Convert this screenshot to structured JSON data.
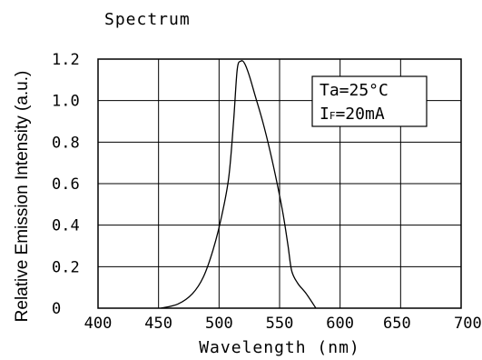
{
  "chart_data": {
    "type": "line",
    "title": "Spectrum",
    "xlabel": "Wavelength (nm)",
    "ylabel": "Relative Emission Intensity (a.u.)",
    "xlim": [
      400,
      700
    ],
    "ylim": [
      0,
      1.2
    ],
    "x_ticks": [
      400,
      450,
      500,
      550,
      600,
      650,
      700
    ],
    "x_tick_labels": [
      "400",
      "450",
      "500",
      "550",
      "600",
      "650",
      "700"
    ],
    "y_ticks": [
      0,
      0.2,
      0.4,
      0.6,
      0.8,
      1.0,
      1.2
    ],
    "y_tick_labels": [
      "0",
      "0.2",
      "0.4",
      "0.6",
      "0.8",
      "1.0",
      "1.2"
    ],
    "grid": true,
    "annotation": {
      "line1": "Ta=25°C",
      "line2_prefix": "I",
      "line2_subscript": "F",
      "line2_rest": "=20mA",
      "position": "top-right"
    },
    "series": [
      {
        "x": [
          452,
          466,
          478,
          487,
          495,
          502,
          508,
          512,
          515,
          518,
          521,
          525,
          530,
          536,
          542,
          548,
          553,
          557,
          560,
          565,
          572,
          580
        ],
        "y": [
          0.0,
          0.02,
          0.07,
          0.15,
          0.28,
          0.44,
          0.63,
          0.9,
          1.15,
          1.19,
          1.18,
          1.12,
          1.02,
          0.9,
          0.76,
          0.6,
          0.45,
          0.3,
          0.18,
          0.12,
          0.07,
          0.0
        ]
      }
    ]
  }
}
